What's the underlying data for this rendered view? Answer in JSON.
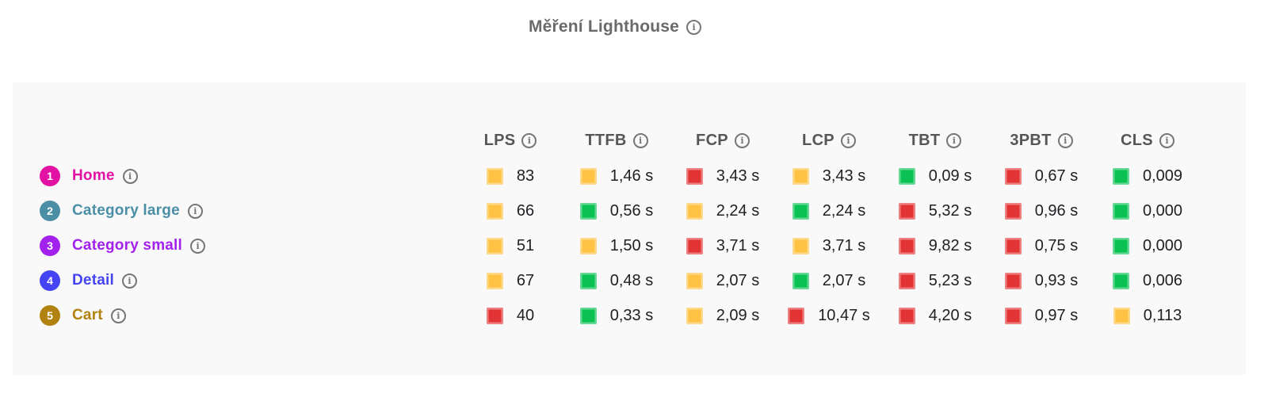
{
  "title": {
    "text": "Měření Lighthouse"
  },
  "colors": {
    "rating_yellow": "#ffc243",
    "rating_green": "#0ac153",
    "rating_red": "#e23434",
    "card_background": "#f9f9fa",
    "title_text": "#6a6a6a",
    "header_text": "#565656",
    "value_text": "#202124",
    "info_icon": "#767676",
    "row_home": "#e212a5",
    "row_category_large": "#4a8fa5",
    "row_category_small": "#a321ec",
    "row_detail": "#4444f2",
    "row_cart": "#b1820f"
  },
  "table": {
    "columns": [
      {
        "label": "LPS"
      },
      {
        "label": "TTFB"
      },
      {
        "label": "FCP"
      },
      {
        "label": "LCP"
      },
      {
        "label": "TBT"
      },
      {
        "label": "3PBT"
      },
      {
        "label": "CLS"
      }
    ],
    "rows": [
      {
        "index": "1",
        "label": "Home",
        "cells": [
          {
            "rating": "yellow",
            "value": "83"
          },
          {
            "rating": "yellow",
            "value": "1,46 s"
          },
          {
            "rating": "red",
            "value": "3,43 s"
          },
          {
            "rating": "yellow",
            "value": "3,43 s"
          },
          {
            "rating": "green",
            "value": "0,09 s"
          },
          {
            "rating": "red",
            "value": "0,67 s"
          },
          {
            "rating": "green",
            "value": "0,009"
          }
        ]
      },
      {
        "index": "2",
        "label": "Category large",
        "cells": [
          {
            "rating": "yellow",
            "value": "66"
          },
          {
            "rating": "green",
            "value": "0,56 s"
          },
          {
            "rating": "yellow",
            "value": "2,24 s"
          },
          {
            "rating": "green",
            "value": "2,24 s"
          },
          {
            "rating": "red",
            "value": "5,32 s"
          },
          {
            "rating": "red",
            "value": "0,96 s"
          },
          {
            "rating": "green",
            "value": "0,000"
          }
        ]
      },
      {
        "index": "3",
        "label": "Category small",
        "cells": [
          {
            "rating": "yellow",
            "value": "51"
          },
          {
            "rating": "yellow",
            "value": "1,50 s"
          },
          {
            "rating": "red",
            "value": "3,71 s"
          },
          {
            "rating": "yellow",
            "value": "3,71 s"
          },
          {
            "rating": "red",
            "value": "9,82 s"
          },
          {
            "rating": "red",
            "value": "0,75 s"
          },
          {
            "rating": "green",
            "value": "0,000"
          }
        ]
      },
      {
        "index": "4",
        "label": "Detail",
        "cells": [
          {
            "rating": "yellow",
            "value": "67"
          },
          {
            "rating": "green",
            "value": "0,48 s"
          },
          {
            "rating": "yellow",
            "value": "2,07 s"
          },
          {
            "rating": "green",
            "value": "2,07 s"
          },
          {
            "rating": "red",
            "value": "5,23 s"
          },
          {
            "rating": "red",
            "value": "0,93 s"
          },
          {
            "rating": "green",
            "value": "0,006"
          }
        ]
      },
      {
        "index": "5",
        "label": "Cart",
        "cells": [
          {
            "rating": "red",
            "value": "40"
          },
          {
            "rating": "green",
            "value": "0,33 s"
          },
          {
            "rating": "yellow",
            "value": "2,09 s"
          },
          {
            "rating": "red",
            "value": "10,47 s"
          },
          {
            "rating": "red",
            "value": "4,20 s"
          },
          {
            "rating": "red",
            "value": "0,97 s"
          },
          {
            "rating": "yellow",
            "value": "0,113"
          }
        ]
      }
    ]
  },
  "chart_data": {
    "type": "table",
    "title": "Měření Lighthouse",
    "columns": [
      "LPS",
      "TTFB",
      "FCP",
      "LCP",
      "TBT",
      "3PBT",
      "CLS"
    ],
    "rows": [
      {
        "label": "Home",
        "values": [
          "83",
          "1,46 s",
          "3,43 s",
          "3,43 s",
          "0,09 s",
          "0,67 s",
          "0,009"
        ],
        "ratings": [
          "yellow",
          "yellow",
          "red",
          "yellow",
          "green",
          "red",
          "green"
        ]
      },
      {
        "label": "Category large",
        "values": [
          "66",
          "0,56 s",
          "2,24 s",
          "2,24 s",
          "5,32 s",
          "0,96 s",
          "0,000"
        ],
        "ratings": [
          "yellow",
          "green",
          "yellow",
          "green",
          "red",
          "red",
          "green"
        ]
      },
      {
        "label": "Category small",
        "values": [
          "51",
          "1,50 s",
          "3,71 s",
          "3,71 s",
          "9,82 s",
          "0,75 s",
          "0,000"
        ],
        "ratings": [
          "yellow",
          "yellow",
          "red",
          "yellow",
          "red",
          "red",
          "green"
        ]
      },
      {
        "label": "Detail",
        "values": [
          "67",
          "0,48 s",
          "2,07 s",
          "2,07 s",
          "5,23 s",
          "0,93 s",
          "0,006"
        ],
        "ratings": [
          "yellow",
          "green",
          "yellow",
          "green",
          "red",
          "red",
          "green"
        ]
      },
      {
        "label": "Cart",
        "values": [
          "40",
          "0,33 s",
          "2,09 s",
          "10,47 s",
          "4,20 s",
          "0,97 s",
          "0,113"
        ],
        "ratings": [
          "red",
          "green",
          "yellow",
          "red",
          "red",
          "red",
          "yellow"
        ]
      }
    ]
  }
}
